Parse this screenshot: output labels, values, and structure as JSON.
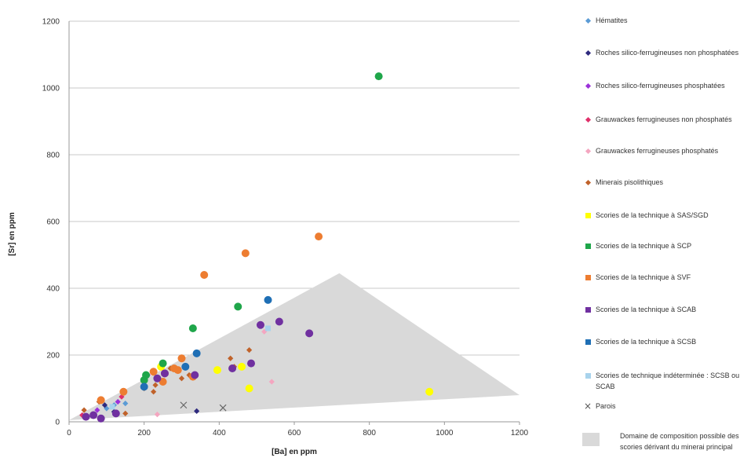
{
  "chart_data": {
    "type": "scatter",
    "xlabel": "[Ba] en ppm",
    "ylabel": "[Sr] en ppm",
    "xlim": [
      0,
      1200
    ],
    "ylim": [
      0,
      1200
    ],
    "xticks": [
      0,
      200,
      400,
      600,
      800,
      1000,
      1200
    ],
    "yticks": [
      0,
      200,
      400,
      600,
      800,
      1000,
      1200
    ],
    "grid": "horizontal",
    "legend_position": "right",
    "area": {
      "name": "Domaine de composition possible des scories dérivant du minerai principal",
      "color": "#d9d9d9",
      "polygon": [
        [
          0,
          5
        ],
        [
          720,
          445
        ],
        [
          1200,
          80
        ]
      ]
    },
    "series": [
      {
        "name": "Hématites",
        "color": "#5b9bd5",
        "marker": "diamond",
        "points": [
          [
            150,
            55
          ],
          [
            120,
            50
          ],
          [
            100,
            40
          ]
        ]
      },
      {
        "name": "Roches silico-ferrugineuses non phosphatées",
        "color": "#2e2a7e",
        "marker": "diamond",
        "points": [
          [
            95,
            50
          ],
          [
            120,
            30
          ],
          [
            340,
            32
          ]
        ]
      },
      {
        "name": "Roches silico-ferrugineuses phosphatées",
        "color": "#9b30d9",
        "marker": "diamond",
        "points": [
          [
            75,
            35
          ],
          [
            130,
            60
          ],
          [
            210,
            140
          ]
        ]
      },
      {
        "name": "Grauwackes ferrugineuses non phosphatés",
        "color": "#e0306a",
        "marker": "diamond",
        "points": [
          [
            35,
            20
          ],
          [
            140,
            75
          ]
        ]
      },
      {
        "name": "Grauwackes ferrugineuses phosphatés",
        "color": "#f4a6c0",
        "marker": "diamond",
        "points": [
          [
            235,
            22
          ],
          [
            540,
            120
          ],
          [
            520,
            270
          ]
        ]
      },
      {
        "name": "Minerais pisolithiques",
        "color": "#c0622a",
        "marker": "diamond",
        "points": [
          [
            40,
            35
          ],
          [
            80,
            60
          ],
          [
            150,
            25
          ],
          [
            200,
            100
          ],
          [
            225,
            90
          ],
          [
            270,
            160
          ],
          [
            300,
            130
          ],
          [
            320,
            140
          ],
          [
            430,
            190
          ],
          [
            480,
            215
          ],
          [
            440,
            165
          ],
          [
            230,
            110
          ]
        ]
      },
      {
        "name": "Scories de la technique à SAS/SGD",
        "color": "#ffff00",
        "marker": "circle",
        "points": [
          [
            245,
            165
          ],
          [
            395,
            155
          ],
          [
            460,
            165
          ],
          [
            480,
            100
          ],
          [
            960,
            90
          ]
        ]
      },
      {
        "name": "Scories de la technique à SCP",
        "color": "#1fa64a",
        "marker": "circle",
        "points": [
          [
            200,
            125
          ],
          [
            205,
            140
          ],
          [
            250,
            175
          ],
          [
            330,
            280
          ],
          [
            450,
            345
          ],
          [
            825,
            1035
          ]
        ]
      },
      {
        "name": "Scories de la technique à SVF",
        "color": "#ed7d31",
        "marker": "circle",
        "points": [
          [
            85,
            65
          ],
          [
            145,
            90
          ],
          [
            225,
            150
          ],
          [
            255,
            145
          ],
          [
            280,
            160
          ],
          [
            300,
            190
          ],
          [
            360,
            440
          ],
          [
            470,
            505
          ],
          [
            665,
            555
          ],
          [
            330,
            135
          ],
          [
            250,
            120
          ],
          [
            290,
            155
          ]
        ]
      },
      {
        "name": "Scories de la technique à SCAB",
        "color": "#7030a0",
        "marker": "circle",
        "points": [
          [
            45,
            15
          ],
          [
            65,
            20
          ],
          [
            85,
            10
          ],
          [
            125,
            25
          ],
          [
            235,
            130
          ],
          [
            255,
            145
          ],
          [
            335,
            140
          ],
          [
            435,
            160
          ],
          [
            485,
            175
          ],
          [
            510,
            290
          ],
          [
            560,
            300
          ],
          [
            640,
            265
          ]
        ]
      },
      {
        "name": "Scories de la technique à SCSB",
        "color": "#1f6fb5",
        "marker": "circle",
        "points": [
          [
            200,
            105
          ],
          [
            310,
            165
          ],
          [
            340,
            205
          ],
          [
            530,
            365
          ]
        ]
      },
      {
        "name": "Scories de technique indéterminée : SCSB ou SCAB",
        "color": "#a8d3ec",
        "marker": "square",
        "points": [
          [
            115,
            45
          ],
          [
            530,
            280
          ]
        ]
      },
      {
        "name": "Parois",
        "color": "#666666",
        "marker": "cross",
        "points": [
          [
            305,
            50
          ],
          [
            410,
            42
          ]
        ]
      }
    ]
  }
}
